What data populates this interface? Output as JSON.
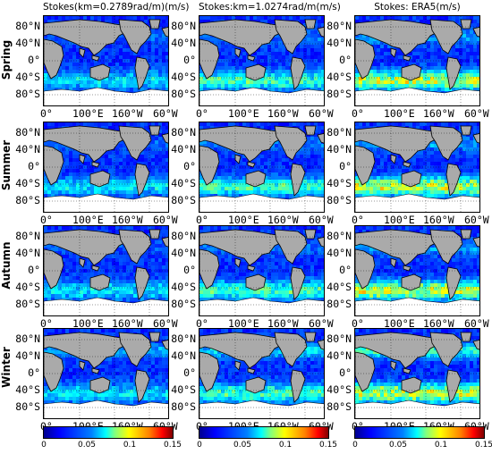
{
  "columns": [
    {
      "title": "Stokes(km=0.2789rad/m)(m/s)"
    },
    {
      "title": "Stokes:km=1.0274rad/m(m/s)"
    },
    {
      "title": "Stokes: ERA5(m/s)"
    }
  ],
  "rows": [
    {
      "label": "Spring"
    },
    {
      "label": "Summer"
    },
    {
      "label": "Autumn"
    },
    {
      "label": "Winter"
    }
  ],
  "lat_ticks": [
    "80°N",
    "40°N",
    "0°",
    "40°S",
    "80°S"
  ],
  "lon_ticks": [
    "0°",
    "100°E",
    "160°W",
    "60°W"
  ],
  "colorbar": {
    "ticks": [
      "0",
      "0.05",
      "0.1",
      "0.15"
    ],
    "range": [
      0,
      0.15
    ],
    "colormap": "jet"
  },
  "colors": {
    "land": "#aaaaaa",
    "ocean_base": "#1432e6",
    "ice": "#ffffff"
  }
}
